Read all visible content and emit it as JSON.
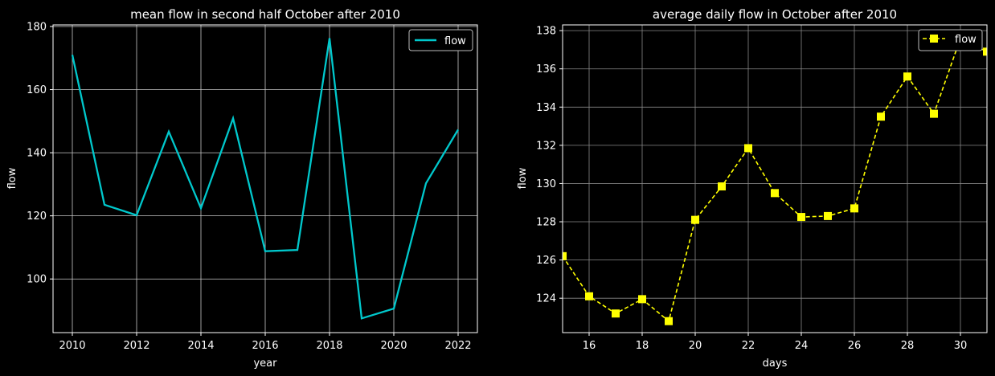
{
  "chart_data": [
    {
      "type": "line",
      "title": "mean flow in second half October after 2010",
      "xlabel": "year",
      "ylabel": "flow",
      "xlim": [
        2009.4,
        2022.6
      ],
      "ylim": [
        83,
        180.5
      ],
      "xticks": [
        2010,
        2012,
        2014,
        2016,
        2018,
        2020,
        2022
      ],
      "yticks": [
        100,
        120,
        140,
        160,
        180
      ],
      "grid": true,
      "legend": "top-right",
      "series": [
        {
          "name": "flow",
          "color": "#00c8cc",
          "style": "solid",
          "x": [
            2010,
            2011,
            2012,
            2013,
            2014,
            2015,
            2016,
            2017,
            2018,
            2019,
            2020,
            2021,
            2022
          ],
          "y": [
            171,
            123.5,
            120.2,
            146.7,
            122.4,
            150.9,
            108.8,
            109.2,
            176.3,
            87.5,
            90.6,
            130.3,
            147.3
          ]
        }
      ]
    },
    {
      "type": "line",
      "title": "average daily flow in October after 2010",
      "xlabel": "days",
      "ylabel": "flow",
      "xlim": [
        15,
        31
      ],
      "ylim": [
        122.2,
        138.3
      ],
      "xticks": [
        16,
        18,
        20,
        22,
        24,
        26,
        28,
        30
      ],
      "yticks": [
        124,
        126,
        128,
        130,
        132,
        134,
        136,
        138
      ],
      "grid": true,
      "legend": "top-right",
      "series": [
        {
          "name": "flow",
          "color": "#ffff00",
          "style": "dashed",
          "marker": "square",
          "x": [
            15,
            16,
            17,
            18,
            19,
            20,
            21,
            22,
            23,
            24,
            25,
            26,
            27,
            28,
            29,
            30,
            31
          ],
          "y": [
            126.2,
            124.1,
            123.2,
            123.95,
            122.8,
            128.1,
            129.85,
            131.85,
            129.5,
            128.25,
            128.3,
            128.7,
            133.5,
            135.6,
            133.65,
            137.6,
            136.9
          ]
        }
      ]
    }
  ]
}
